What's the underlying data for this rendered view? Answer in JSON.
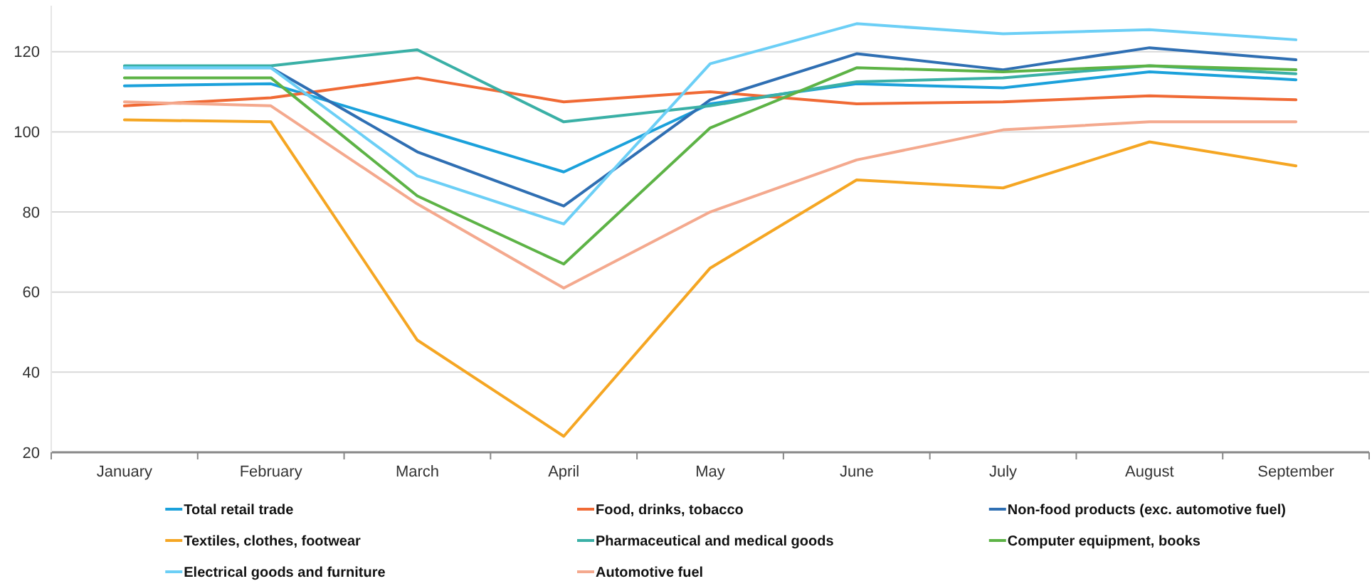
{
  "chart_data": {
    "type": "line",
    "categories": [
      "January",
      "February",
      "March",
      "April",
      "May",
      "June",
      "July",
      "August",
      "September"
    ],
    "series": [
      {
        "name": "Total retail trade",
        "color": "#1ba1db",
        "values": [
          111.5,
          112,
          101,
          90,
          107,
          112,
          111,
          115,
          113
        ]
      },
      {
        "name": "Food, drinks, tobacco",
        "color": "#f06a35",
        "values": [
          106.5,
          108.5,
          113.5,
          107.5,
          110,
          107,
          107.5,
          109,
          108
        ]
      },
      {
        "name": "Non-food products (exc. automotive fuel)",
        "color": "#2f6fb3",
        "values": [
          116,
          116,
          95,
          81.5,
          108,
          119.5,
          115.5,
          121,
          118
        ]
      },
      {
        "name": "Textiles, clothes, footwear",
        "color": "#f5a623",
        "values": [
          103,
          102.5,
          48,
          24,
          66,
          88,
          86,
          97.5,
          91.5
        ]
      },
      {
        "name": "Pharmaceutical and medical goods",
        "color": "#3ab0a6",
        "values": [
          116.5,
          116.5,
          120.5,
          102.5,
          106.5,
          112.5,
          113.5,
          116.5,
          114.5
        ]
      },
      {
        "name": "Computer equipment, books",
        "color": "#5db346",
        "values": [
          113.5,
          113.5,
          84,
          67,
          101,
          116,
          115,
          116.5,
          115.5
        ]
      },
      {
        "name": "Electrical goods and furniture",
        "color": "#6ccff6",
        "values": [
          116,
          116,
          89,
          77,
          117,
          127,
          124.5,
          125.5,
          123
        ]
      },
      {
        "name": "Automotive fuel",
        "color": "#f4a98e",
        "values": [
          107.5,
          106.5,
          82,
          61,
          80,
          93,
          100.5,
          102.5,
          102.5
        ]
      }
    ],
    "ylim": [
      20,
      131.5
    ],
    "yticks": [
      20,
      40,
      60,
      80,
      100,
      120
    ],
    "grid": "y",
    "legend": "bottom",
    "marker": "none",
    "line_style": "solid"
  }
}
